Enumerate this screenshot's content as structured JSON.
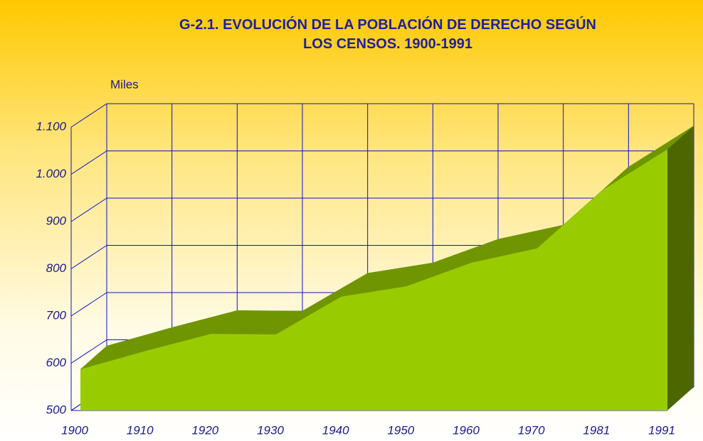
{
  "chart_data": {
    "type": "area3d",
    "title": "G-2.1. EVOLUCIÓN DE LA POBLACIÓN DE DERECHO SEGÚN LOS CENSOS. 1900-1991",
    "y_axis_label": "Miles",
    "categories": [
      "1900",
      "1910",
      "1920",
      "1930",
      "1940",
      "1950",
      "1960",
      "1970",
      "1981",
      "1991"
    ],
    "values": [
      587,
      626,
      662,
      661,
      741,
      763,
      813,
      843,
      966,
      1053
    ],
    "color": "#99cc00",
    "ylim": [
      500,
      1100
    ],
    "yticks": [
      500,
      600,
      700,
      800,
      900,
      {
        "value": 1000,
        "label": "1.000"
      },
      {
        "value": 1100,
        "label": "1.100"
      }
    ],
    "grid": true
  }
}
